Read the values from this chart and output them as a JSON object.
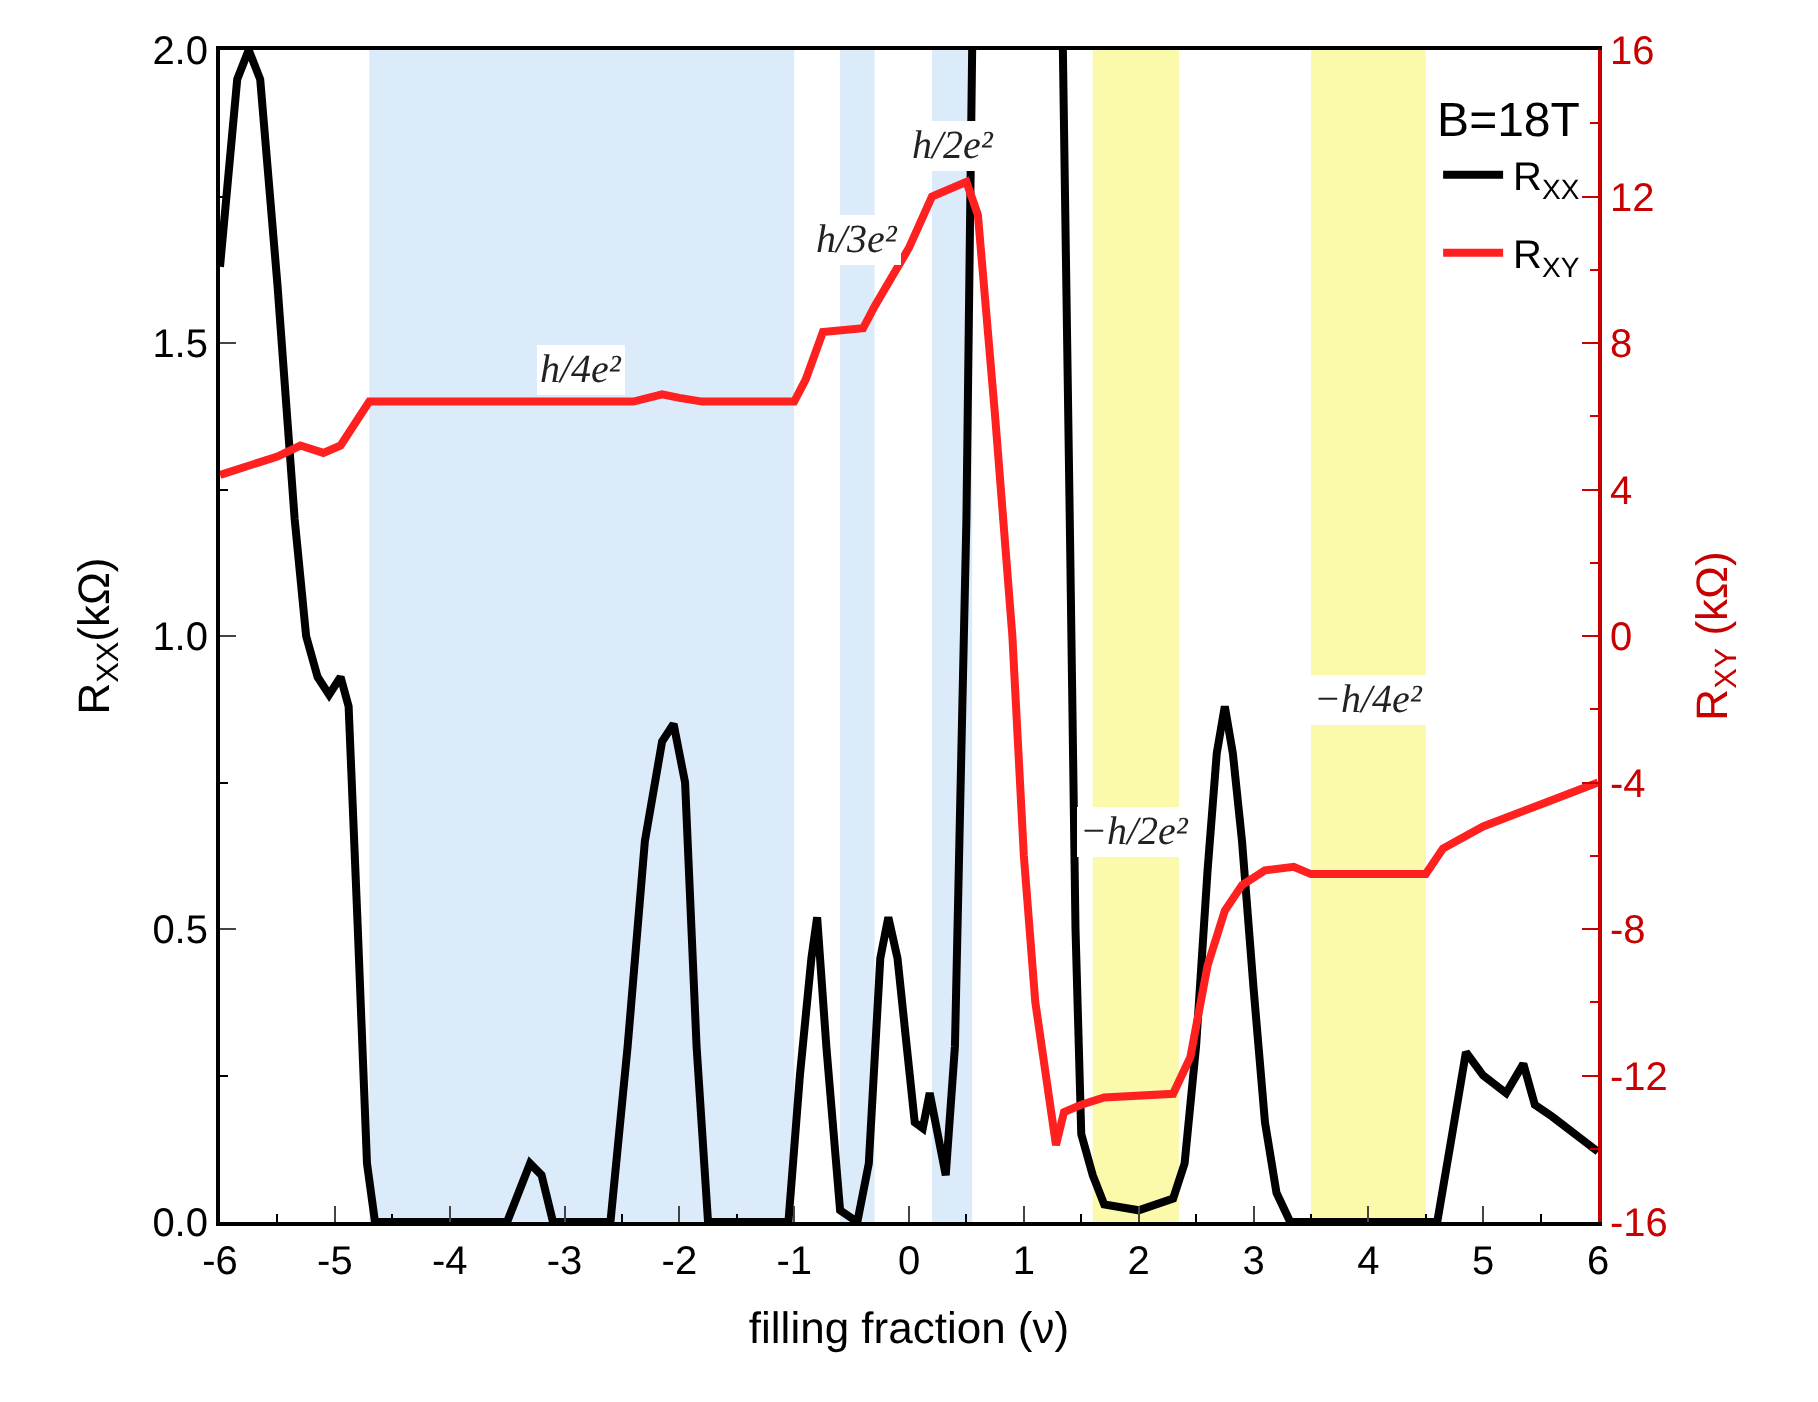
{
  "chart_data": {
    "type": "line",
    "xlabel": "filling fraction (ν)",
    "ylabel": "R$_{XX}$(kΩ)",
    "y2label": "R$_{XY}$ (kΩ)",
    "legend_title": "B=18T",
    "legend": "top right",
    "grid": false,
    "marker": "none",
    "line_style": "solid",
    "xlim": [
      -6,
      6
    ],
    "xticks": [
      -6,
      -5,
      -4,
      -3,
      -2,
      -1,
      0,
      1,
      2,
      3,
      4,
      5,
      6
    ],
    "ylim": [
      0,
      2
    ],
    "yticks": [
      {
        "value": 0,
        "label": "0.0"
      },
      {
        "value": 0.5,
        "label": "0.5"
      },
      {
        "value": 1,
        "label": "1.0"
      },
      {
        "value": 1.5,
        "label": "1.5"
      },
      {
        "value": 2,
        "label": "2.0"
      }
    ],
    "y2lim": [
      -16,
      16
    ],
    "y2ticks": [
      -16,
      -12,
      -8,
      -4,
      0,
      4,
      8,
      12,
      16
    ],
    "series": [
      {
        "name": "R$_{XX}$",
        "color": "#000000",
        "x": [
          -6,
          -5.85,
          -5.75,
          -5.65,
          -5.5,
          -5.35,
          -5.25,
          -5.15,
          -5.05,
          -4.95,
          -4.88,
          -4.8,
          -4.72,
          -4.65,
          -3.5,
          -3.4,
          -3.3,
          -3.2,
          -3.1,
          -2.6,
          -2.45,
          -2.3,
          -2.15,
          -2.05,
          -1.95,
          -1.85,
          -1.75,
          -1.05,
          -0.95,
          -0.85,
          -0.8,
          -0.72,
          -0.6,
          -0.45,
          -0.35,
          -0.25,
          -0.18,
          -0.1,
          -0.02,
          0.05,
          0.12,
          0.18,
          0.25,
          0.32,
          0.4,
          0.5,
          0.55,
          0.9,
          1.34,
          1.4,
          1.45,
          1.5,
          1.6,
          1.7,
          2.0,
          2.3,
          2.4,
          2.5,
          2.6,
          2.68,
          2.75,
          2.82,
          2.9,
          3.0,
          3.1,
          3.2,
          3.32,
          4.6,
          4.73,
          4.85,
          5.0,
          5.2,
          5.35,
          5.45,
          5.6,
          5.8,
          6.0
        ],
        "values": [
          1.63,
          1.95,
          2.0,
          1.95,
          1.6,
          1.2,
          1.0,
          0.93,
          0.9,
          0.93,
          0.88,
          0.5,
          0.1,
          0.0,
          0.0,
          0.05,
          0.1,
          0.08,
          0.0,
          0.0,
          0.3,
          0.65,
          0.82,
          0.85,
          0.75,
          0.3,
          0.0,
          0.0,
          0.25,
          0.45,
          0.52,
          0.3,
          0.02,
          0.0,
          0.1,
          0.45,
          0.52,
          0.45,
          0.3,
          0.17,
          0.16,
          0.22,
          0.15,
          0.08,
          0.3,
          1.2,
          2.0,
          null,
          2.0,
          1.2,
          0.5,
          0.15,
          0.08,
          0.03,
          0.02,
          0.04,
          0.1,
          0.3,
          0.6,
          0.8,
          0.88,
          0.8,
          0.65,
          0.4,
          0.17,
          0.05,
          0.0,
          0.0,
          0.15,
          0.29,
          0.25,
          0.22,
          0.27,
          0.2,
          0.18,
          0.15,
          0.12
        ]
      },
      {
        "name": "R$_{XY}$",
        "color": "#ff2020",
        "axis": "y2",
        "x": [
          -6,
          -5.5,
          -5.3,
          -5.1,
          -4.95,
          -4.7,
          -2.4,
          -2.15,
          -2.0,
          -1.8,
          -1.0,
          -0.9,
          -0.75,
          -0.4,
          -0.3,
          0.0,
          0.2,
          0.5,
          0.6,
          0.75,
          0.9,
          1.0,
          1.1,
          1.28,
          1.35,
          1.5,
          1.7,
          2.3,
          2.45,
          2.6,
          2.75,
          2.9,
          3.1,
          3.35,
          3.5,
          4.5,
          4.65,
          5.0,
          5.5,
          6.0
        ],
        "values": [
          4.4,
          4.9,
          5.2,
          5.0,
          5.2,
          6.4,
          6.4,
          6.6,
          6.5,
          6.4,
          6.4,
          7.0,
          8.3,
          8.4,
          9.0,
          10.6,
          12.0,
          12.4,
          11.5,
          6.0,
          0,
          -6,
          -10,
          -13.9,
          -13.0,
          -12.8,
          -12.6,
          -12.5,
          -11.5,
          -9,
          -7.5,
          -6.8,
          -6.4,
          -6.3,
          -6.5,
          -6.5,
          -5.8,
          -5.2,
          -4.6,
          -4.0
        ]
      }
    ],
    "bands": [
      {
        "axis": "x",
        "from": -4.7,
        "to": -1.0,
        "color": "#dcebfa",
        "label": "h/4e²"
      },
      {
        "axis": "x",
        "from": -0.6,
        "to": -0.3,
        "color": "#dcebfa",
        "label": "h/3e²"
      },
      {
        "axis": "x",
        "from": 0.2,
        "to": 0.55,
        "color": "#dcebfa",
        "label": "h/2e²"
      },
      {
        "axis": "x",
        "from": 1.6,
        "to": 2.35,
        "color": "#fafaaa",
        "label": "−h/2e²"
      },
      {
        "axis": "x",
        "from": 3.5,
        "to": 4.5,
        "color": "#fafaaa",
        "label": "−h/4e²"
      }
    ]
  }
}
